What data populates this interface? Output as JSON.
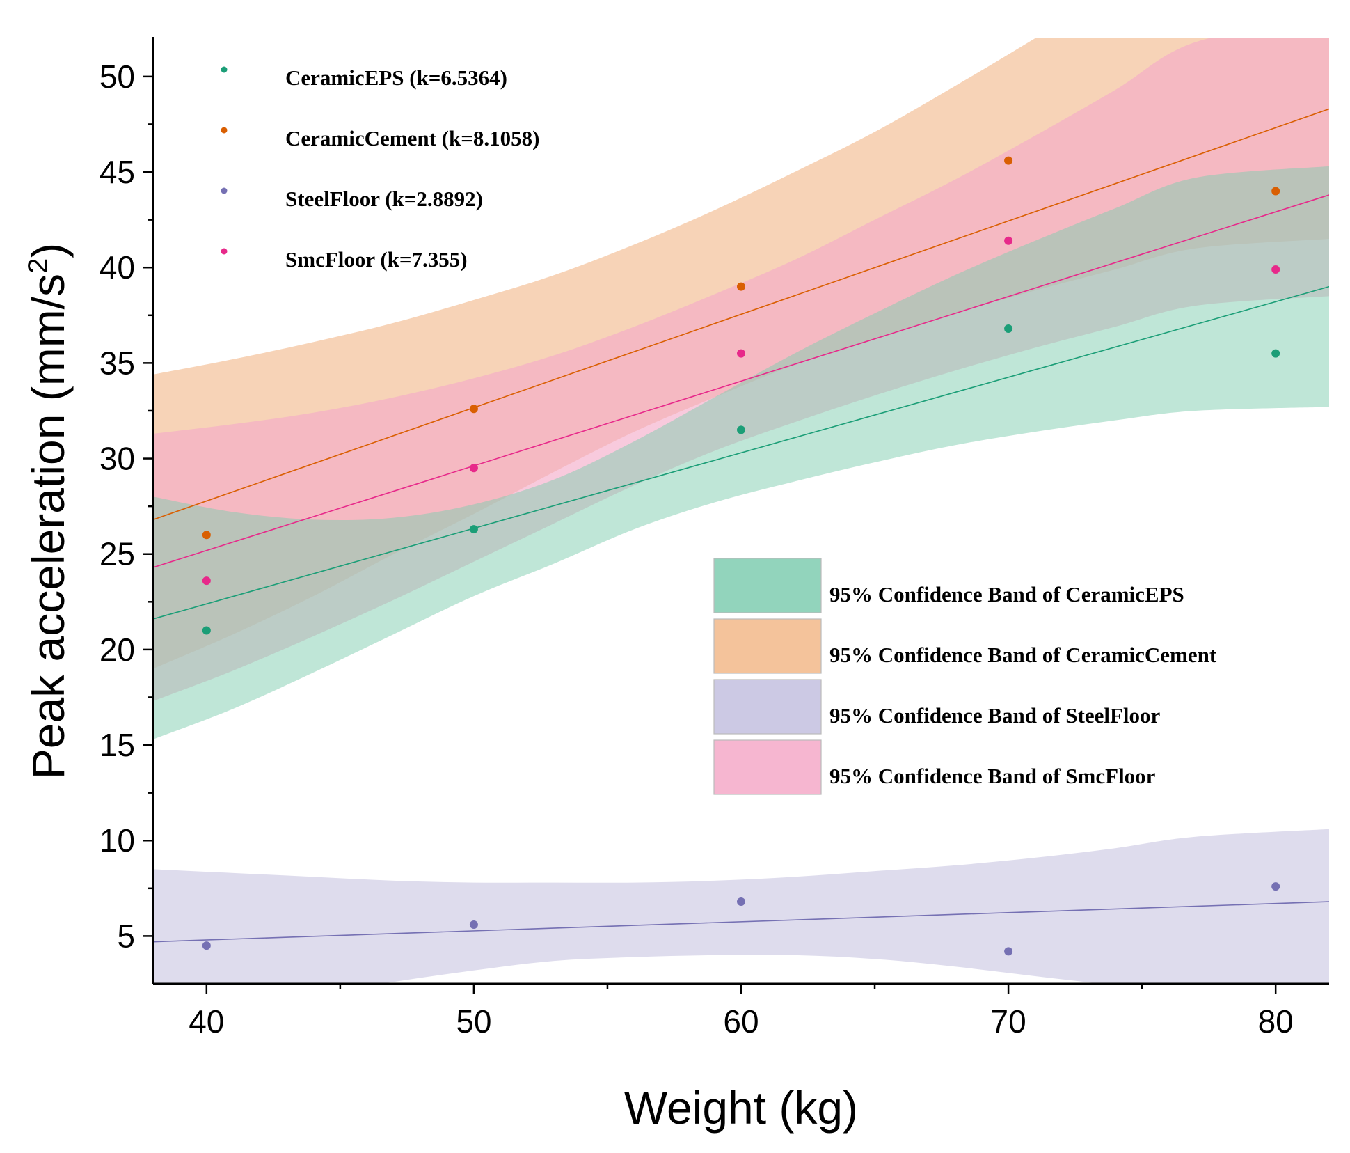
{
  "chart_data": {
    "type": "scatter",
    "title": "",
    "xlabel": "Weight (kg)",
    "ylabel_main": "Peak acceleration (mm/s",
    "ylabel_sup": "2",
    "ylabel_close": ")",
    "xlim": [
      38,
      82
    ],
    "ylim": [
      2.5,
      52
    ],
    "xticks": [
      40,
      50,
      60,
      70,
      80
    ],
    "yticks": [
      5,
      10,
      15,
      20,
      25,
      30,
      35,
      40,
      45,
      50
    ],
    "series": [
      {
        "name": "CeramicEPS (k=6.5364)",
        "color": "#1b9e77",
        "x": [
          40,
          50,
          60,
          70,
          80
        ],
        "y": [
          21.0,
          26.3,
          31.5,
          36.8,
          35.5
        ],
        "fit": [
          21.6,
          39.0
        ],
        "band_label": "95% Confidence Band of CeramicEPS",
        "band_color": "#7fcdb0",
        "band_upper": [
          28.0,
          27.2,
          26.8,
          26.9,
          27.6,
          28.9,
          30.9,
          33.2,
          35.5,
          37.6,
          39.6,
          41.4,
          43.1,
          44.7,
          45.3
        ],
        "band_lower": [
          15.3,
          16.9,
          18.8,
          20.8,
          22.8,
          24.5,
          26.3,
          27.7,
          28.8,
          29.8,
          30.7,
          31.4,
          32.0,
          32.5,
          32.7
        ]
      },
      {
        "name": "CeramicCement (k=8.1058)",
        "color": "#d95f02",
        "x": [
          40,
          50,
          60,
          70,
          80
        ],
        "y": [
          26.0,
          32.6,
          39.0,
          45.6,
          44.0
        ],
        "fit": [
          26.8,
          48.3
        ],
        "band_label": "95% Confidence Band of CeramicCement",
        "band_color": "#f2b88a",
        "band_upper": [
          34.4,
          35.2,
          36.1,
          37.1,
          38.3,
          39.6,
          41.2,
          43.0,
          45.0,
          47.1,
          49.5,
          52.0,
          54.6,
          57.3,
          58.5
        ],
        "band_lower": [
          19.0,
          20.8,
          22.8,
          25.0,
          27.1,
          29.3,
          31.4,
          33.2,
          34.9,
          36.3,
          37.6,
          38.8,
          39.9,
          41.0,
          41.5
        ]
      },
      {
        "name": "SteelFloor (k=2.8892)",
        "color": "#7570b3",
        "x": [
          40,
          50,
          60,
          70,
          80
        ],
        "y": [
          4.5,
          5.6,
          6.8,
          4.2,
          7.6
        ],
        "fit": [
          4.7,
          6.8
        ],
        "band_label": "95% Confidence Band of SteelFloor",
        "band_color": "#c3bfdf",
        "band_upper": [
          8.5,
          8.3,
          8.1,
          7.9,
          7.8,
          7.8,
          7.8,
          7.9,
          8.1,
          8.4,
          8.7,
          9.1,
          9.6,
          10.2,
          10.6
        ],
        "band_lower": [
          1.0,
          1.4,
          1.9,
          2.6,
          3.2,
          3.7,
          3.9,
          4.0,
          4.0,
          3.8,
          3.4,
          2.9,
          2.4,
          1.8,
          1.5
        ]
      },
      {
        "name": "SmcFloor (k=7.355)",
        "color": "#e7298a",
        "x": [
          40,
          50,
          60,
          70,
          80
        ],
        "y": [
          23.6,
          29.5,
          35.5,
          41.4,
          39.9
        ],
        "fit": [
          24.3,
          43.8
        ],
        "band_label": "95% Confidence Band of SmcFloor",
        "band_color": "#f4a9c8",
        "band_upper": [
          31.3,
          31.8,
          32.4,
          33.2,
          34.2,
          35.4,
          36.9,
          38.6,
          40.4,
          42.5,
          44.6,
          46.9,
          49.3,
          51.8,
          53.0
        ],
        "band_lower": [
          17.3,
          18.9,
          20.7,
          22.6,
          24.6,
          26.6,
          28.6,
          30.4,
          31.9,
          33.3,
          34.6,
          35.8,
          36.9,
          38.0,
          38.5
        ]
      }
    ],
    "band_x": [
      38,
      41,
      44,
      47,
      50,
      53,
      56,
      59,
      62,
      65,
      68,
      71,
      74,
      77,
      82
    ]
  }
}
